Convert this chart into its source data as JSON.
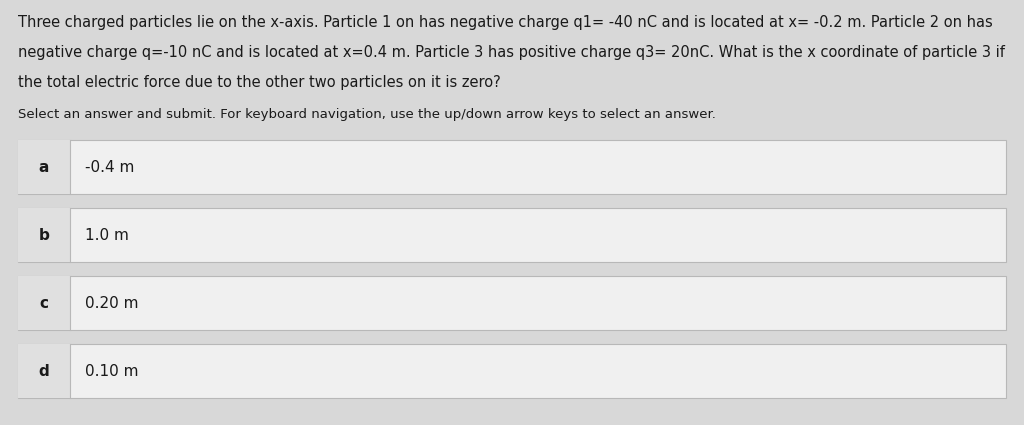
{
  "background_color": "#d8d8d8",
  "question_text_lines": [
    "Three charged particles lie on the x-axis. Particle 1 on has negative charge q1= -40 nC and is located at x= -0.2 m. Particle 2 on has",
    "negative charge q=-10 nC and is located at x=0.4 m. Particle 3 has positive charge q3= 20nC. What is the x coordinate of particle 3 if",
    "the total electric force due to the other two particles on it is zero?"
  ],
  "instruction_text": "Select an answer and submit. For keyboard navigation, use the up/down arrow keys to select an answer.",
  "options": [
    {
      "label": "a",
      "text": "-0.4 m"
    },
    {
      "label": "b",
      "text": "1.0 m"
    },
    {
      "label": "c",
      "text": "0.20 m"
    },
    {
      "label": "d",
      "text": "0.10 m"
    }
  ],
  "option_box_facecolor": "#f0f0f0",
  "option_border_color": "#b8b8b8",
  "label_col_color": "#e0e0e0",
  "text_color": "#1a1a1a",
  "question_fontsize": 10.5,
  "instruction_fontsize": 9.5,
  "option_label_fontsize": 11,
  "option_text_fontsize": 11
}
